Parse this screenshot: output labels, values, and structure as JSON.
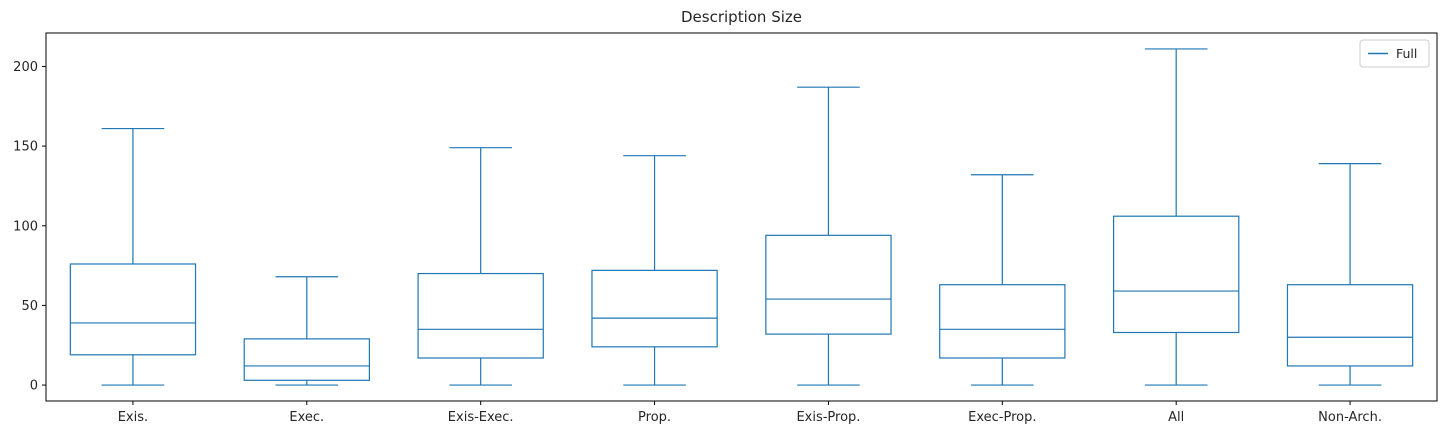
{
  "chart_data": {
    "type": "box",
    "title": "Description Size",
    "xlabel": "",
    "ylabel": "",
    "ylim": [
      -10,
      221
    ],
    "yticks": [
      0,
      50,
      100,
      150,
      200
    ],
    "categories": [
      "Exis.",
      "Exec.",
      "Exis-Exec.",
      "Prop.",
      "Exis-Prop.",
      "Exec-Prop.",
      "All",
      "Non-Arch."
    ],
    "series": [
      {
        "name": "Full",
        "color": "#1f77b4",
        "boxes": [
          {
            "min": 0,
            "q1": 19,
            "median": 39,
            "q3": 76,
            "max": 161
          },
          {
            "min": 0,
            "q1": 3,
            "median": 12,
            "q3": 29,
            "max": 68
          },
          {
            "min": 0,
            "q1": 17,
            "median": 35,
            "q3": 70,
            "max": 149
          },
          {
            "min": 0,
            "q1": 24,
            "median": 42,
            "q3": 72,
            "max": 144
          },
          {
            "min": 0,
            "q1": 32,
            "median": 54,
            "q3": 94,
            "max": 187
          },
          {
            "min": 0,
            "q1": 17,
            "median": 35,
            "q3": 63,
            "max": 132
          },
          {
            "min": 0,
            "q1": 33,
            "median": 59,
            "q3": 106,
            "max": 211
          },
          {
            "min": 0,
            "q1": 12,
            "median": 30,
            "q3": 63,
            "max": 139
          }
        ]
      }
    ],
    "legend": {
      "position": "top-right",
      "entries": [
        "Full"
      ]
    },
    "grid": false
  }
}
